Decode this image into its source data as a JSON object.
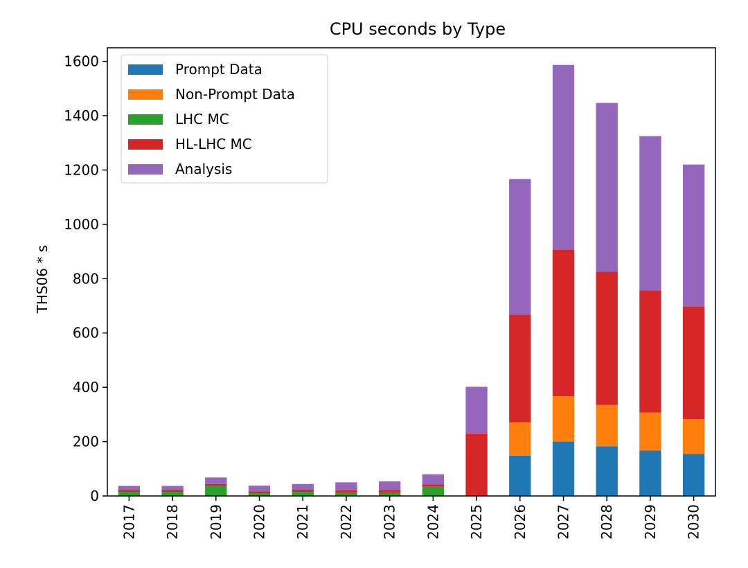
{
  "chart_data": {
    "type": "bar",
    "stacked": true,
    "title": "CPU seconds by Type",
    "xlabel": "",
    "ylabel": "THS06 * s",
    "ylim": [
      0,
      1650
    ],
    "yticks": [
      0,
      200,
      400,
      600,
      800,
      1000,
      1200,
      1400,
      1600
    ],
    "legend_position": "top-left",
    "grid": false,
    "categories": [
      "2017",
      "2018",
      "2019",
      "2020",
      "2021",
      "2022",
      "2023",
      "2024",
      "2025",
      "2026",
      "2027",
      "2028",
      "2029",
      "2030"
    ],
    "series": [
      {
        "name": "Prompt Data",
        "color": "#1f77b4",
        "values": [
          0,
          0,
          0,
          0,
          0,
          0,
          0,
          0,
          0,
          148,
          200,
          183,
          167,
          155
        ]
      },
      {
        "name": "Non-Prompt Data",
        "color": "#ff7f0e",
        "values": [
          0,
          0,
          0,
          0,
          0,
          0,
          0,
          0,
          0,
          123,
          167,
          152,
          140,
          128
        ]
      },
      {
        "name": "LHC MC",
        "color": "#2ca02c",
        "values": [
          15,
          15,
          36,
          10,
          15,
          13,
          12,
          34,
          0,
          0,
          0,
          0,
          0,
          0
        ]
      },
      {
        "name": "HL-LHC MC",
        "color": "#d62728",
        "values": [
          7,
          7,
          8,
          7,
          8,
          8,
          10,
          8,
          230,
          396,
          540,
          490,
          450,
          415
        ]
      },
      {
        "name": "Analysis",
        "color": "#9467bd",
        "values": [
          15,
          15,
          24,
          21,
          21,
          29,
          32,
          38,
          172,
          500,
          680,
          622,
          568,
          522
        ]
      }
    ]
  }
}
